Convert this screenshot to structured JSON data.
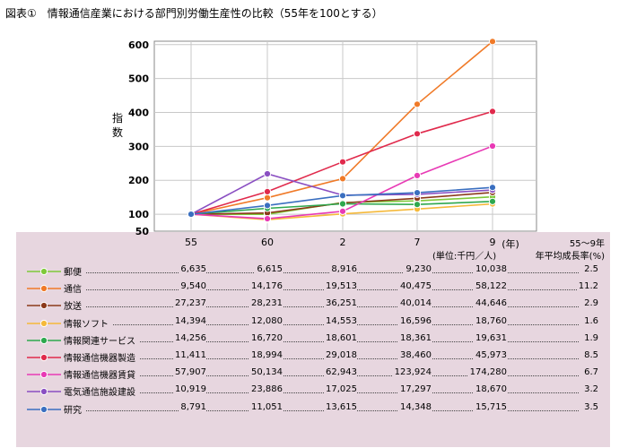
{
  "title": "図表①　情報通信産業における部門別労働生産性の比較（55年を100とする）",
  "chart_data": {
    "type": "line",
    "categories": [
      "55",
      "60",
      "2",
      "7",
      "9"
    ],
    "x_unit_suffix": "(年)",
    "ylabel": "指数",
    "y_ticks": [
      50,
      100,
      200,
      300,
      400,
      500,
      600
    ],
    "ylim": [
      50,
      610
    ],
    "grid": true,
    "series": [
      {
        "name": "郵便",
        "color": "#7fc93a",
        "index": [
          100,
          99.7,
          134.4,
          139.2,
          151.3
        ],
        "values": [
          "6,635",
          "6,615",
          "8,916",
          "9,230",
          "10,038"
        ],
        "growth": "2.5"
      },
      {
        "name": "通信",
        "color": "#f07a28",
        "index": [
          100,
          148.6,
          204.7,
          424.3,
          609.2
        ],
        "values": [
          "9,540",
          "14,176",
          "19,513",
          "40,475",
          "58,122"
        ],
        "growth": "11.2"
      },
      {
        "name": "放送",
        "color": "#8b3a1a",
        "index": [
          100,
          103.7,
          133.2,
          147.0,
          164.0
        ],
        "values": [
          "27,237",
          "28,231",
          "36,251",
          "40,014",
          "44,646"
        ],
        "growth": "2.9"
      },
      {
        "name": "情報ソフト",
        "color": "#f5b93a",
        "index": [
          100,
          83.9,
          101.1,
          115.3,
          130.3
        ],
        "values": [
          "14,394",
          "12,080",
          "14,553",
          "16,596",
          "18,760"
        ],
        "growth": "1.6"
      },
      {
        "name": "情報関連サービス",
        "color": "#2ea84e",
        "index": [
          100,
          117.3,
          130.5,
          128.8,
          137.7
        ],
        "values": [
          "14,256",
          "16,720",
          "18,601",
          "18,361",
          "19,631"
        ],
        "growth": "1.9"
      },
      {
        "name": "情報通信機器製造",
        "color": "#e02a4c",
        "index": [
          100,
          166.5,
          254.3,
          337.1,
          402.9
        ],
        "values": [
          "11,411",
          "18,994",
          "29,018",
          "38,460",
          "45,973"
        ],
        "growth": "8.5"
      },
      {
        "name": "情報通信機器賃貸",
        "color": "#e83ab5",
        "index": [
          100,
          86.6,
          108.7,
          214.1,
          301.0
        ],
        "values": [
          "57,907",
          "50,134",
          "62,943",
          "123,924",
          "174,280"
        ],
        "growth": "6.7"
      },
      {
        "name": "電気通信施設建設",
        "color": "#8a4fc2",
        "index": [
          100,
          219.0,
          156.1,
          158.6,
          171.2
        ],
        "values": [
          "10,919",
          "23,886",
          "17,025",
          "17,297",
          "18,670"
        ],
        "growth": "3.2"
      },
      {
        "name": "研究",
        "color": "#3a6fc0",
        "index": [
          100,
          125.7,
          154.9,
          163.2,
          178.8
        ],
        "values": [
          "8,791",
          "11,051",
          "13,615",
          "14,348",
          "15,715"
        ],
        "growth": "3.5"
      }
    ]
  },
  "table_header": {
    "period": "55〜9年",
    "unit": "(単位:千円／人)",
    "growth_label": "年平均成長率(%)"
  }
}
